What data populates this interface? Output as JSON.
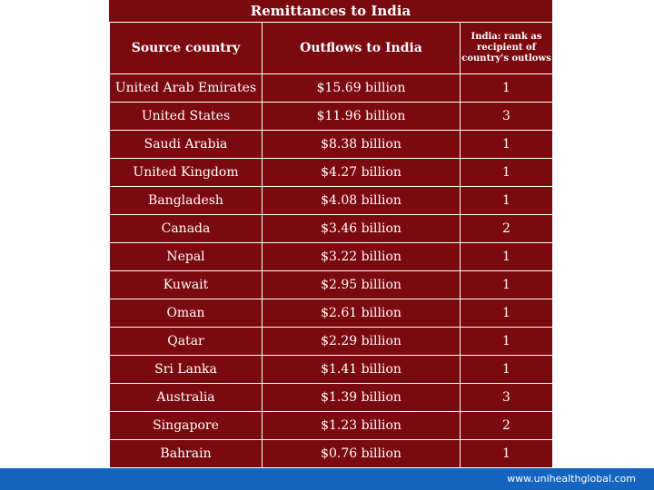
{
  "table": {
    "title": "Remittances to India",
    "headers": {
      "source": "Source country",
      "outflows": "Outflows to India",
      "rank": "India: rank as recipient of country's outlows"
    },
    "rows": [
      {
        "country": "United Arab Emirates",
        "outflow": "$15.69 billion",
        "rank": "1"
      },
      {
        "country": "United States",
        "outflow": "$11.96 billion",
        "rank": "3"
      },
      {
        "country": "Saudi Arabia",
        "outflow": "$8.38 billion",
        "rank": "1"
      },
      {
        "country": "United Kingdom",
        "outflow": "$4.27 billion",
        "rank": "1"
      },
      {
        "country": "Bangladesh",
        "outflow": "$4.08 billion",
        "rank": "1"
      },
      {
        "country": "Canada",
        "outflow": "$3.46 billion",
        "rank": "2"
      },
      {
        "country": "Nepal",
        "outflow": "$3.22 billion",
        "rank": "1"
      },
      {
        "country": "Kuwait",
        "outflow": "$2.95 billion",
        "rank": "1"
      },
      {
        "country": "Oman",
        "outflow": "$2.61 billion",
        "rank": "1"
      },
      {
        "country": "Qatar",
        "outflow": "$2.29 billion",
        "rank": "1"
      },
      {
        "country": "Sri Lanka",
        "outflow": "$1.41 billion",
        "rank": "1"
      },
      {
        "country": "Australia",
        "outflow": "$1.39 billion",
        "rank": "3"
      },
      {
        "country": "Singapore",
        "outflow": "$1.23 billion",
        "rank": "2"
      },
      {
        "country": "Bahrain",
        "outflow": "$0.76 billion",
        "rank": "1"
      }
    ]
  },
  "footer": {
    "url": "www.unihealthglobal.com"
  },
  "colors": {
    "panel": "#7a0a0f",
    "footer_bar": "#1565c0"
  }
}
